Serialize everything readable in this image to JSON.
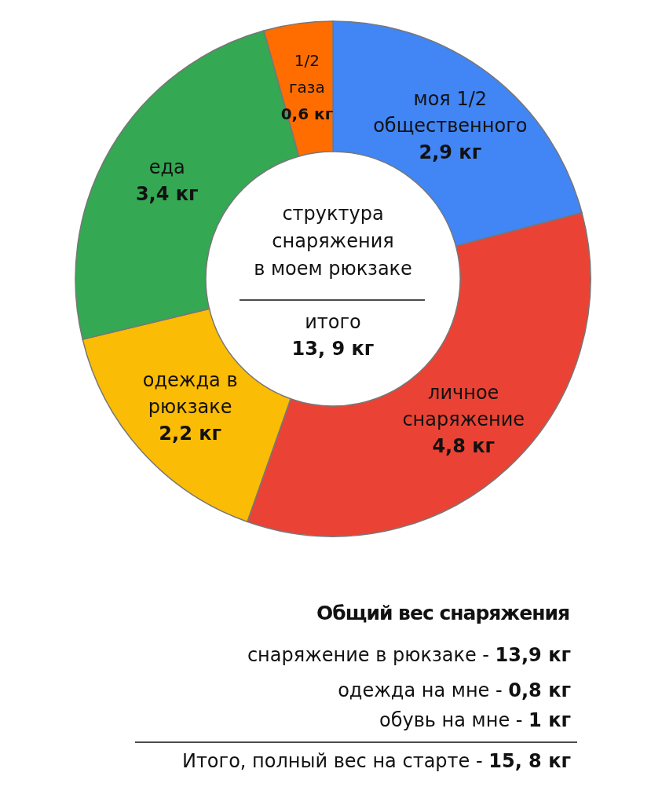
{
  "chart_data": {
    "type": "donut",
    "title": "Общий вес снаряжения",
    "categories": [
      "моя 1/2 общественного",
      "личное снаряжение",
      "одежда в рюкзаке",
      "еда",
      "1/2 газа"
    ],
    "values": [
      2.9,
      4.8,
      2.2,
      3.4,
      0.6
    ],
    "value_labels": [
      "2,9 кг",
      "4,8 кг",
      "2,2 кг",
      "3,4 кг",
      "0,6 кг"
    ],
    "colors": [
      "#4285f4",
      "#ea4335",
      "#fbbc05",
      "#34a853",
      "#ff6d01"
    ],
    "annotations": [
      "структура снаряжения в моем рюкзаке",
      "итого",
      "13, 9 кг",
      "снаряжение в рюкзаке - 13,9 кг",
      "одежда на мне - 0,8 кг",
      "обувь на мне - 1 кг",
      "Итого, полный вес на старте - 15, 8 кг"
    ]
  }
}
